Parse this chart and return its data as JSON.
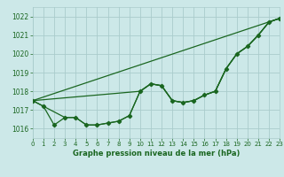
{
  "background_color": "#cce8e8",
  "grid_color": "#aacccc",
  "line_color": "#1a6620",
  "marker_color": "#1a6620",
  "title": "Graphe pression niveau de la mer (hPa)",
  "xlim": [
    0,
    23
  ],
  "ylim": [
    1015.5,
    1022.5
  ],
  "yticks": [
    1016,
    1017,
    1018,
    1019,
    1020,
    1021,
    1022
  ],
  "xticks": [
    0,
    1,
    2,
    3,
    4,
    5,
    6,
    7,
    8,
    9,
    10,
    11,
    12,
    13,
    14,
    15,
    16,
    17,
    18,
    19,
    20,
    21,
    22,
    23
  ],
  "xtick_labels": [
    "0",
    "1",
    "2",
    "3",
    "4",
    "5",
    "6",
    "7",
    "8",
    "9",
    "10",
    "11",
    "12",
    "13",
    "14",
    "15",
    "16",
    "17",
    "18",
    "19",
    "20",
    "21",
    "22",
    "23"
  ],
  "series1_x": [
    0,
    1,
    2,
    3,
    4,
    5,
    6,
    7,
    8,
    9,
    10,
    11,
    12,
    13,
    14,
    15,
    16,
    17,
    18,
    19,
    20,
    21,
    22,
    23
  ],
  "series1_y": [
    1017.5,
    1017.2,
    1016.2,
    1016.6,
    1016.6,
    1016.2,
    1016.2,
    1016.3,
    1016.4,
    1016.7,
    1018.0,
    1018.4,
    1018.3,
    1017.5,
    1017.4,
    1017.5,
    1017.8,
    1018.0,
    1019.2,
    1020.0,
    1020.4,
    1021.0,
    1021.7,
    1021.9
  ],
  "series2_x": [
    0,
    23
  ],
  "series2_y": [
    1017.5,
    1021.9
  ],
  "series3_x": [
    0,
    10,
    11,
    12,
    13,
    14,
    15,
    16,
    17,
    18,
    19,
    20,
    21,
    22,
    23
  ],
  "series3_y": [
    1017.5,
    1018.0,
    1018.4,
    1018.3,
    1017.5,
    1017.4,
    1017.5,
    1017.8,
    1018.0,
    1019.2,
    1020.0,
    1020.4,
    1021.0,
    1021.7,
    1021.9
  ],
  "series4_x": [
    0,
    3,
    4,
    5,
    6,
    7,
    8,
    9,
    10,
    11,
    12,
    13,
    14,
    15,
    16,
    17,
    18,
    19,
    20,
    21,
    22,
    23
  ],
  "series4_y": [
    1017.5,
    1016.6,
    1016.6,
    1016.2,
    1016.2,
    1016.3,
    1016.4,
    1016.7,
    1018.0,
    1018.4,
    1018.3,
    1017.5,
    1017.4,
    1017.5,
    1017.8,
    1018.0,
    1019.2,
    1020.0,
    1020.4,
    1021.0,
    1021.7,
    1021.9
  ]
}
